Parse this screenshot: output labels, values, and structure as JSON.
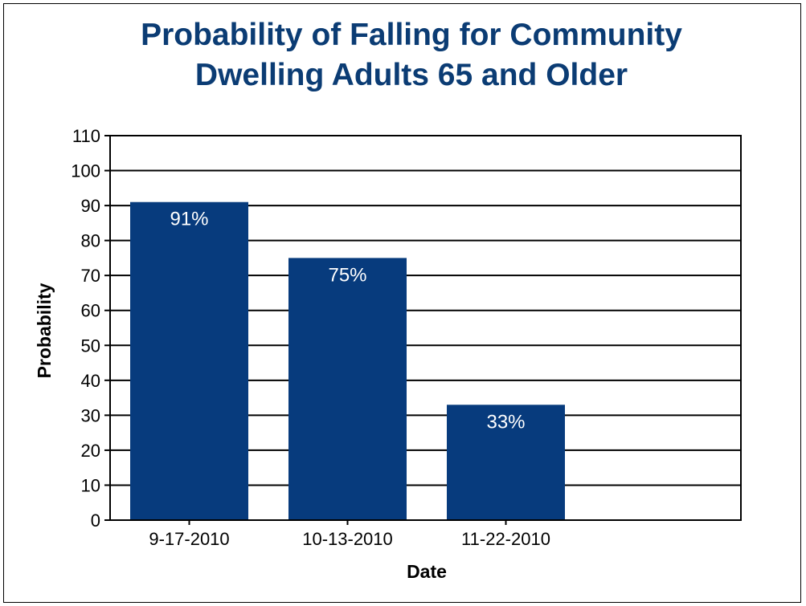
{
  "chart_data": {
    "type": "bar",
    "title_lines": [
      "Probability of Falling for Community",
      "Dwelling Adults 65 and Older"
    ],
    "xlabel": "Date",
    "ylabel": "Probability",
    "categories": [
      "9-17-2010",
      "10-13-2010",
      "11-22-2010"
    ],
    "values": [
      91,
      75,
      33
    ],
    "data_labels": [
      "91%",
      "75%",
      "33%"
    ],
    "ylim": [
      0,
      110
    ],
    "yticks": [
      0,
      10,
      20,
      30,
      40,
      50,
      60,
      70,
      80,
      90,
      100,
      110
    ],
    "grid": true,
    "legend": "none",
    "colors": {
      "bar": "#073b7d",
      "title": "#0b3c74",
      "grid": "#000000"
    }
  }
}
